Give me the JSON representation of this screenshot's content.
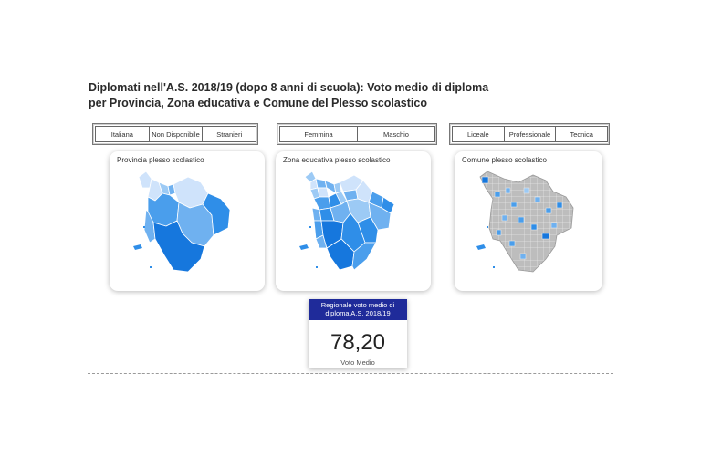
{
  "title": {
    "line1": "Diplomati nell'A.S. 2018/19 (dopo 8 anni di scuola): Voto medio di diploma",
    "line2": "per Provincia, Zona educativa e Comune del Plesso scolastico"
  },
  "slicers": {
    "cittadinanza": [
      "Italiana",
      "Non Disponibile",
      "Stranieri"
    ],
    "genere": [
      "Femmina",
      "Maschio"
    ],
    "indirizzo": [
      "Liceale",
      "Professionale",
      "Tecnica"
    ]
  },
  "maps": {
    "provincia": {
      "title": "Provincia plesso scolastico"
    },
    "zona": {
      "title": "Zona educativa plesso scolastico"
    },
    "comune": {
      "title": "Comune plesso scolastico"
    }
  },
  "kpi": {
    "header": "Regionale voto medio di diploma A.S. 2018/19",
    "value": "78,20",
    "label": "Voto Medio"
  },
  "colors": {
    "light": "#cfe3fb",
    "mid": "#6fb1f0",
    "strong": "#2f8ee8",
    "dark": "#1677dd",
    "nodata": "#bdbdbd",
    "kpi_header": "#1f2b9a"
  }
}
